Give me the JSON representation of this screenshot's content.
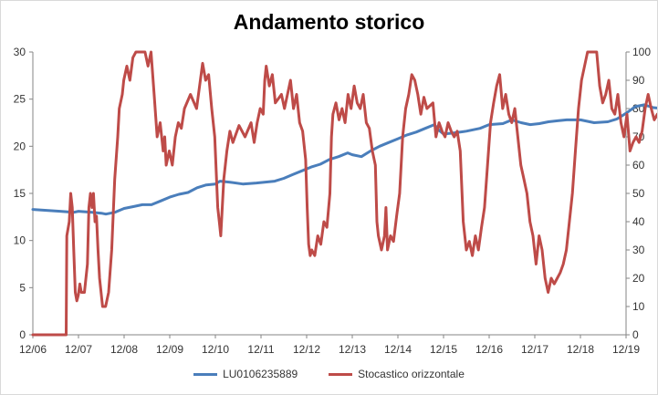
{
  "chart_data": {
    "type": "line",
    "title": "Andamento storico",
    "xlabel": "",
    "ylabel": "",
    "x_categories": [
      "12/06",
      "12/07",
      "12/08",
      "12/09",
      "12/10",
      "12/11",
      "12/12",
      "12/13",
      "12/14",
      "12/15",
      "12/16",
      "12/17",
      "12/18",
      "12/19"
    ],
    "y_left": {
      "range": [
        0,
        30
      ],
      "ticks": [
        0,
        5,
        10,
        15,
        20,
        25,
        30
      ]
    },
    "y_right": {
      "range": [
        0,
        100
      ],
      "ticks": [
        0,
        10,
        20,
        30,
        40,
        50,
        60,
        70,
        80,
        90,
        100
      ]
    },
    "grid": false,
    "legend_position": "bottom",
    "series": [
      {
        "name": "LU0106235889",
        "axis": "left",
        "color": "#4a7ebb",
        "points": [
          [
            0.0,
            13.3
          ],
          [
            0.3,
            13.2
          ],
          [
            0.6,
            13.1
          ],
          [
            0.9,
            13.0
          ],
          [
            1.0,
            13.1
          ],
          [
            1.3,
            13.0
          ],
          [
            1.5,
            12.9
          ],
          [
            1.6,
            12.8
          ],
          [
            1.8,
            13.0
          ],
          [
            2.0,
            13.4
          ],
          [
            2.2,
            13.6
          ],
          [
            2.4,
            13.8
          ],
          [
            2.6,
            13.8
          ],
          [
            2.8,
            14.2
          ],
          [
            3.0,
            14.6
          ],
          [
            3.2,
            14.9
          ],
          [
            3.4,
            15.1
          ],
          [
            3.6,
            15.6
          ],
          [
            3.8,
            15.9
          ],
          [
            4.0,
            16.0
          ],
          [
            4.1,
            16.3
          ],
          [
            4.3,
            16.2
          ],
          [
            4.6,
            16.0
          ],
          [
            4.9,
            16.1
          ],
          [
            5.1,
            16.2
          ],
          [
            5.3,
            16.3
          ],
          [
            5.5,
            16.6
          ],
          [
            5.7,
            17.0
          ],
          [
            5.9,
            17.4
          ],
          [
            6.1,
            17.8
          ],
          [
            6.3,
            18.1
          ],
          [
            6.5,
            18.6
          ],
          [
            6.7,
            18.9
          ],
          [
            6.9,
            19.3
          ],
          [
            7.0,
            19.1
          ],
          [
            7.2,
            18.9
          ],
          [
            7.4,
            19.5
          ],
          [
            7.6,
            20.0
          ],
          [
            7.8,
            20.4
          ],
          [
            8.0,
            20.8
          ],
          [
            8.2,
            21.2
          ],
          [
            8.4,
            21.5
          ],
          [
            8.6,
            21.9
          ],
          [
            8.8,
            22.3
          ],
          [
            8.9,
            21.7
          ],
          [
            9.0,
            21.3
          ],
          [
            9.2,
            21.4
          ],
          [
            9.5,
            21.6
          ],
          [
            9.8,
            21.9
          ],
          [
            10.0,
            22.3
          ],
          [
            10.3,
            22.4
          ],
          [
            10.5,
            22.8
          ],
          [
            10.7,
            22.5
          ],
          [
            10.9,
            22.3
          ],
          [
            11.1,
            22.4
          ],
          [
            11.3,
            22.6
          ],
          [
            11.5,
            22.7
          ],
          [
            11.7,
            22.8
          ],
          [
            12.0,
            22.8
          ],
          [
            12.3,
            22.5
          ],
          [
            12.6,
            22.6
          ],
          [
            12.8,
            22.9
          ],
          [
            13.0,
            23.5
          ],
          [
            13.2,
            24.2
          ],
          [
            13.4,
            24.4
          ],
          [
            13.6,
            24.1
          ],
          [
            13.8,
            24.0
          ],
          [
            13.95,
            24.0
          ]
        ]
      },
      {
        "name": "Stocastico orizzontale",
        "axis": "right",
        "color": "#be4b48",
        "points": [
          [
            0.0,
            0
          ],
          [
            1.1,
            0
          ],
          [
            1.12,
            35
          ],
          [
            1.2,
            40
          ],
          [
            1.25,
            50
          ],
          [
            1.3,
            45
          ],
          [
            1.35,
            30
          ],
          [
            1.4,
            15
          ],
          [
            1.45,
            12
          ],
          [
            1.5,
            14
          ],
          [
            1.55,
            18
          ],
          [
            1.6,
            15
          ],
          [
            1.7,
            15
          ],
          [
            1.8,
            25
          ],
          [
            1.85,
            45
          ],
          [
            1.9,
            50
          ],
          [
            1.95,
            45
          ],
          [
            2.0,
            50
          ],
          [
            2.05,
            40
          ],
          [
            2.1,
            42
          ],
          [
            2.15,
            30
          ],
          [
            2.2,
            20
          ],
          [
            2.3,
            10
          ],
          [
            2.4,
            10
          ],
          [
            2.5,
            15
          ],
          [
            2.6,
            30
          ],
          [
            2.7,
            55
          ],
          [
            2.8,
            70
          ],
          [
            2.85,
            80
          ],
          [
            2.95,
            85
          ],
          [
            3.0,
            90
          ],
          [
            3.1,
            95
          ],
          [
            3.2,
            90
          ],
          [
            3.3,
            98
          ],
          [
            3.4,
            100
          ],
          [
            3.7,
            100
          ],
          [
            3.8,
            95
          ],
          [
            3.9,
            100
          ],
          [
            4.0,
            85
          ],
          [
            4.1,
            70
          ],
          [
            4.2,
            75
          ],
          [
            4.3,
            65
          ],
          [
            4.35,
            70
          ],
          [
            4.4,
            60
          ],
          [
            4.5,
            65
          ],
          [
            4.6,
            60
          ],
          [
            4.7,
            70
          ],
          [
            4.8,
            75
          ],
          [
            4.9,
            73
          ],
          [
            5.0,
            80
          ],
          [
            5.2,
            85
          ],
          [
            5.4,
            80
          ],
          [
            5.5,
            88
          ],
          [
            5.6,
            96
          ],
          [
            5.7,
            90
          ],
          [
            5.8,
            92
          ],
          [
            5.9,
            80
          ],
          [
            6.0,
            70
          ],
          [
            6.1,
            45
          ],
          [
            6.15,
            40
          ],
          [
            6.2,
            35
          ],
          [
            6.3,
            55
          ],
          [
            6.4,
            65
          ],
          [
            6.5,
            72
          ],
          [
            6.6,
            68
          ],
          [
            6.8,
            74
          ],
          [
            7.0,
            70
          ],
          [
            7.2,
            75
          ],
          [
            7.3,
            68
          ],
          [
            7.4,
            75
          ],
          [
            7.5,
            80
          ],
          [
            7.6,
            78
          ],
          [
            7.65,
            90
          ],
          [
            7.7,
            95
          ],
          [
            7.8,
            88
          ],
          [
            7.9,
            92
          ],
          [
            8.0,
            82
          ],
          [
            8.2,
            85
          ],
          [
            8.3,
            80
          ],
          [
            8.5,
            90
          ],
          [
            8.6,
            80
          ],
          [
            8.7,
            85
          ],
          [
            8.8,
            75
          ],
          [
            8.9,
            72
          ],
          [
            9.0,
            62
          ],
          [
            9.05,
            45
          ],
          [
            9.1,
            32
          ],
          [
            9.15,
            28
          ],
          [
            9.2,
            30
          ],
          [
            9.3,
            28
          ],
          [
            9.4,
            35
          ],
          [
            9.5,
            32
          ],
          [
            9.6,
            40
          ],
          [
            9.7,
            38
          ],
          [
            9.8,
            50
          ],
          [
            9.85,
            70
          ],
          [
            9.9,
            78
          ],
          [
            10.0,
            82
          ],
          [
            10.1,
            76
          ],
          [
            10.2,
            80
          ],
          [
            10.3,
            75
          ],
          [
            10.4,
            85
          ],
          [
            10.5,
            80
          ],
          [
            10.6,
            88
          ],
          [
            10.7,
            82
          ],
          [
            10.8,
            80
          ],
          [
            10.9,
            85
          ],
          [
            11.0,
            75
          ],
          [
            11.1,
            73
          ],
          [
            11.2,
            65
          ],
          [
            11.3,
            60
          ],
          [
            11.35,
            40
          ],
          [
            11.4,
            35
          ],
          [
            11.5,
            30
          ],
          [
            11.6,
            35
          ],
          [
            11.65,
            45
          ],
          [
            11.7,
            30
          ],
          [
            11.8,
            35
          ],
          [
            11.9,
            33
          ],
          [
            12.0,
            42
          ],
          [
            12.1,
            50
          ],
          [
            12.2,
            70
          ],
          [
            12.3,
            80
          ],
          [
            12.4,
            85
          ],
          [
            12.5,
            92
          ],
          [
            12.6,
            90
          ],
          [
            12.7,
            85
          ],
          [
            12.8,
            78
          ],
          [
            12.9,
            84
          ],
          [
            13.0,
            80
          ],
          [
            13.2,
            82
          ],
          [
            13.3,
            70
          ],
          [
            13.4,
            75
          ],
          [
            13.5,
            72
          ],
          [
            13.6,
            70
          ],
          [
            13.7,
            75
          ],
          [
            13.8,
            72
          ],
          [
            13.9,
            70
          ],
          [
            14.0,
            72
          ],
          [
            14.1,
            65
          ],
          [
            14.2,
            40
          ],
          [
            14.3,
            30
          ],
          [
            14.4,
            33
          ],
          [
            14.5,
            28
          ],
          [
            14.6,
            35
          ],
          [
            14.7,
            30
          ],
          [
            14.8,
            38
          ],
          [
            14.9,
            45
          ],
          [
            15.0,
            60
          ],
          [
            15.1,
            75
          ],
          [
            15.2,
            82
          ],
          [
            15.3,
            88
          ],
          [
            15.4,
            92
          ],
          [
            15.5,
            80
          ],
          [
            15.6,
            85
          ],
          [
            15.7,
            78
          ],
          [
            15.8,
            75
          ],
          [
            15.9,
            80
          ],
          [
            16.0,
            70
          ],
          [
            16.1,
            60
          ],
          [
            16.2,
            55
          ],
          [
            16.3,
            50
          ],
          [
            16.4,
            40
          ],
          [
            16.5,
            35
          ],
          [
            16.6,
            25
          ],
          [
            16.7,
            35
          ],
          [
            16.8,
            30
          ],
          [
            16.9,
            20
          ],
          [
            17.0,
            15
          ],
          [
            17.1,
            20
          ],
          [
            17.2,
            18
          ],
          [
            17.3,
            20
          ],
          [
            17.4,
            22
          ],
          [
            17.5,
            25
          ],
          [
            17.6,
            30
          ],
          [
            17.7,
            40
          ],
          [
            17.8,
            50
          ],
          [
            17.9,
            65
          ],
          [
            18.0,
            80
          ],
          [
            18.1,
            90
          ],
          [
            18.2,
            95
          ],
          [
            18.3,
            100
          ],
          [
            18.6,
            100
          ],
          [
            18.7,
            88
          ],
          [
            18.8,
            82
          ],
          [
            18.9,
            85
          ],
          [
            19.0,
            90
          ],
          [
            19.1,
            80
          ],
          [
            19.2,
            78
          ],
          [
            19.3,
            85
          ],
          [
            19.4,
            75
          ],
          [
            19.5,
            70
          ],
          [
            19.6,
            78
          ],
          [
            19.7,
            65
          ],
          [
            19.8,
            68
          ],
          [
            19.9,
            70
          ],
          [
            20.0,
            68
          ],
          [
            20.1,
            72
          ],
          [
            20.2,
            80
          ],
          [
            20.3,
            85
          ],
          [
            20.4,
            80
          ],
          [
            20.5,
            76
          ],
          [
            20.6,
            78
          ],
          [
            20.7,
            74
          ],
          [
            20.8,
            76
          ],
          [
            20.9,
            73
          ],
          [
            21.0,
            70
          ]
        ],
        "x_scale": 0.66428
      }
    ]
  }
}
